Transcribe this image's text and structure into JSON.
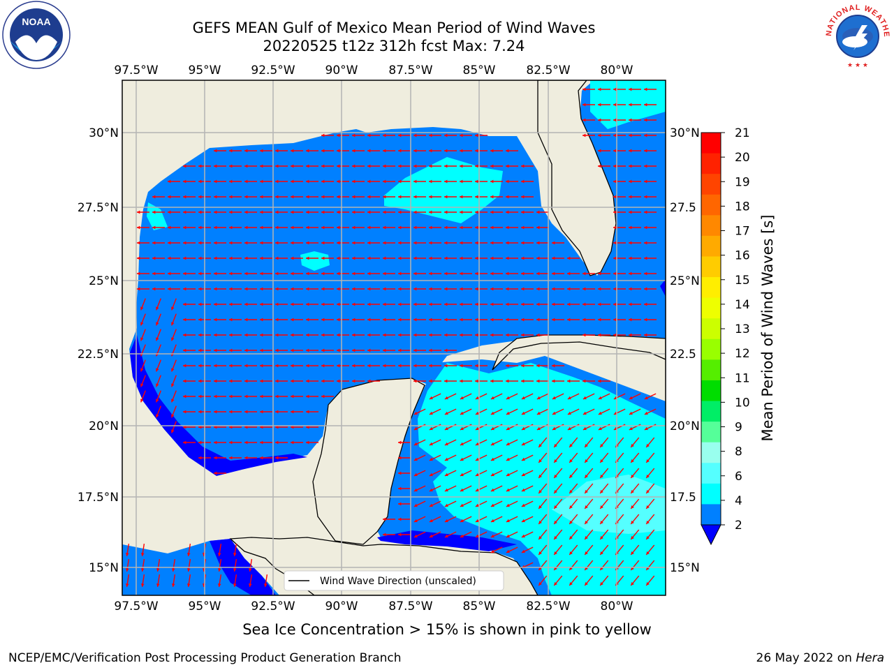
{
  "header": {
    "title_line1": "GEFS MEAN Gulf of Mexico Mean Period of Wind Waves",
    "title_line2": "20220525 t12z 312h fcst   Max: 7.24"
  },
  "axes": {
    "lon_ticks": [
      "97.5°W",
      "95°W",
      "92.5°W",
      "90°W",
      "87.5°W",
      "85°W",
      "82.5°W",
      "80°W"
    ],
    "lat_ticks_left": [
      "30°N",
      "27.5°N",
      "25°N",
      "22.5°N",
      "20°N",
      "17.5°N",
      "15°N"
    ],
    "lat_ticks_right": [
      "30°N",
      "27.5",
      "25°N",
      "22.5",
      "20°N",
      "17.5",
      "15°N"
    ]
  },
  "legend": {
    "label": "Wind Wave Direction (unscaled)"
  },
  "colorbar": {
    "label": "Mean Period of Wind Waves [s]",
    "ticks": [
      "21",
      "20",
      "19",
      "18",
      "17",
      "16",
      "15",
      "14",
      "13",
      "12",
      "11",
      "10",
      "9",
      "8",
      "6",
      "4",
      "2"
    ],
    "colors": [
      "#ff0000",
      "#ff2200",
      "#ff4400",
      "#ff6600",
      "#ff8800",
      "#ffaa00",
      "#ffcc00",
      "#ffee00",
      "#eeff00",
      "#ccff00",
      "#99ff00",
      "#55ee00",
      "#00dd00",
      "#00ee66",
      "#55ff99",
      "#99ffee",
      "#55ffff",
      "#00ffff",
      "#0080ff"
    ],
    "under_color": "#0000ff"
  },
  "map": {
    "ocean_color": "#0080ff",
    "land_color": "#efedde",
    "shallow_color": "#0000ff",
    "long_period_color": "#00ffff",
    "arrow_color": "#ff0000"
  },
  "footer": {
    "subtitle": "Sea Ice Concentration > 15% is shown in pink to yellow",
    "credit": "NCEP/EMC/Verification Post Processing Product Generation Branch",
    "date": "26 May 2022 on",
    "machine": "Hera"
  },
  "logos": {
    "noaa_text": "NOAA",
    "nws_text": "NATIONAL WEATHER SERVICE"
  }
}
